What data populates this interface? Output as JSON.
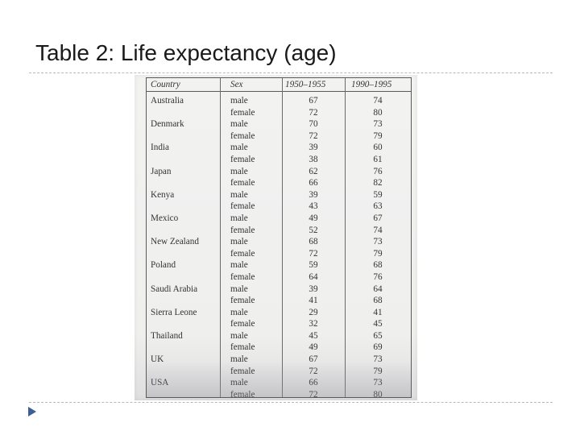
{
  "slide": {
    "title": "Table 2: Life expectancy (age)"
  },
  "table": {
    "headers": {
      "country": "Country",
      "sex": "Sex",
      "period1": "1950–1955",
      "period2": "1990–1995"
    },
    "rows": [
      {
        "country": "Australia",
        "sex": "male",
        "v1": "67",
        "v2": "74"
      },
      {
        "country": "",
        "sex": "female",
        "v1": "72",
        "v2": "80"
      },
      {
        "country": "Denmark",
        "sex": "male",
        "v1": "70",
        "v2": "73"
      },
      {
        "country": "",
        "sex": "female",
        "v1": "72",
        "v2": "79"
      },
      {
        "country": "India",
        "sex": "male",
        "v1": "39",
        "v2": "60"
      },
      {
        "country": "",
        "sex": "female",
        "v1": "38",
        "v2": "61"
      },
      {
        "country": "Japan",
        "sex": "male",
        "v1": "62",
        "v2": "76"
      },
      {
        "country": "",
        "sex": "female",
        "v1": "66",
        "v2": "82"
      },
      {
        "country": "Kenya",
        "sex": "male",
        "v1": "39",
        "v2": "59"
      },
      {
        "country": "",
        "sex": "female",
        "v1": "43",
        "v2": "63"
      },
      {
        "country": "Mexico",
        "sex": "male",
        "v1": "49",
        "v2": "67"
      },
      {
        "country": "",
        "sex": "female",
        "v1": "52",
        "v2": "74"
      },
      {
        "country": "New Zealand",
        "sex": "male",
        "v1": "68",
        "v2": "73"
      },
      {
        "country": "",
        "sex": "female",
        "v1": "72",
        "v2": "79"
      },
      {
        "country": "Poland",
        "sex": "male",
        "v1": "59",
        "v2": "68"
      },
      {
        "country": "",
        "sex": "female",
        "v1": "64",
        "v2": "76"
      },
      {
        "country": "Saudi Arabia",
        "sex": "male",
        "v1": "39",
        "v2": "64"
      },
      {
        "country": "",
        "sex": "female",
        "v1": "41",
        "v2": "68"
      },
      {
        "country": "Sierra Leone",
        "sex": "male",
        "v1": "29",
        "v2": "41"
      },
      {
        "country": "",
        "sex": "female",
        "v1": "32",
        "v2": "45"
      },
      {
        "country": "Thailand",
        "sex": "male",
        "v1": "45",
        "v2": "65"
      },
      {
        "country": "",
        "sex": "female",
        "v1": "49",
        "v2": "69"
      },
      {
        "country": "UK",
        "sex": "male",
        "v1": "67",
        "v2": "73"
      },
      {
        "country": "",
        "sex": "female",
        "v1": "72",
        "v2": "79"
      },
      {
        "country": "USA",
        "sex": "male",
        "v1": "66",
        "v2": "73"
      },
      {
        "country": "",
        "sex": "female",
        "v1": "72",
        "v2": "80"
      }
    ]
  },
  "icons": {
    "bullet": "triangle-bullet-icon"
  },
  "colors": {
    "bullet": "#3d5f96",
    "rule": "#b8b8b8"
  }
}
